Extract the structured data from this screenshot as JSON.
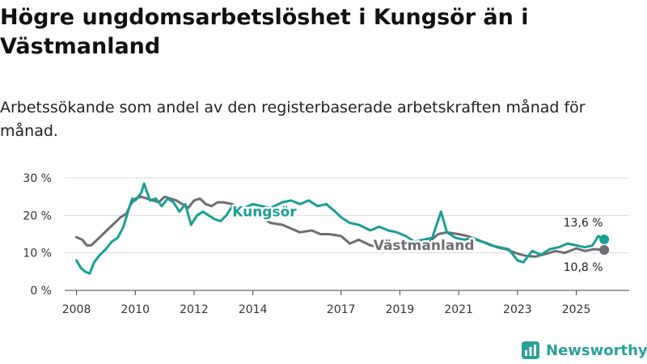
{
  "title": "Högre ungdomsarbetslöshet i Kungsör än i Västmanland",
  "subtitle": "Arbetssökande som andel av den registerbaserade arbetskraften månad för månad.",
  "brand": "Newsworthy",
  "colors": {
    "kungsor": "#1a9f94",
    "vastmanland": "#6e6e72",
    "grid": "#dcdcdc",
    "brand": "#2aa19b"
  },
  "chart_data": {
    "type": "line",
    "xlim": [
      2007.6,
      2026.8
    ],
    "ylim": [
      0,
      30
    ],
    "x_ticks": [
      2008,
      2010,
      2012,
      2014,
      2017,
      2019,
      2021,
      2023,
      2025
    ],
    "x_tick_labels": [
      "2008",
      "2010",
      "2012",
      "2014",
      "2017",
      "2019",
      "2021",
      "2023",
      "2025"
    ],
    "y_ticks": [
      0,
      10,
      20,
      30
    ],
    "y_tick_labels": [
      "0 %",
      "10 %",
      "20 %",
      "30 %"
    ],
    "series": [
      {
        "name": "Västmanland",
        "label": "Västmanland",
        "end_label": "10,8 %",
        "points": [
          [
            2008.0,
            14.2
          ],
          [
            2008.2,
            13.5
          ],
          [
            2008.35,
            12.0
          ],
          [
            2008.5,
            12.0
          ],
          [
            2008.7,
            13.5
          ],
          [
            2008.9,
            15.0
          ],
          [
            2009.1,
            16.5
          ],
          [
            2009.3,
            18.0
          ],
          [
            2009.5,
            19.5
          ],
          [
            2009.7,
            20.5
          ],
          [
            2009.85,
            23.0
          ],
          [
            2010.0,
            24.5
          ],
          [
            2010.2,
            25.0
          ],
          [
            2010.4,
            24.5
          ],
          [
            2010.6,
            24.0
          ],
          [
            2010.8,
            23.5
          ],
          [
            2011.0,
            25.0
          ],
          [
            2011.2,
            24.5
          ],
          [
            2011.4,
            24.0
          ],
          [
            2011.6,
            23.0
          ],
          [
            2011.8,
            22.0
          ],
          [
            2012.0,
            24.0
          ],
          [
            2012.2,
            24.5
          ],
          [
            2012.4,
            23.0
          ],
          [
            2012.6,
            22.5
          ],
          [
            2012.8,
            23.5
          ],
          [
            2013.0,
            23.5
          ],
          [
            2013.3,
            23.0
          ],
          [
            2013.6,
            22.0
          ],
          [
            2014.0,
            21.0
          ],
          [
            2014.3,
            19.5
          ],
          [
            2014.6,
            18.0
          ],
          [
            2015.0,
            17.5
          ],
          [
            2015.3,
            16.5
          ],
          [
            2015.6,
            15.5
          ],
          [
            2016.0,
            16.0
          ],
          [
            2016.3,
            15.0
          ],
          [
            2016.6,
            15.0
          ],
          [
            2017.0,
            14.5
          ],
          [
            2017.3,
            12.5
          ],
          [
            2017.6,
            13.5
          ],
          [
            2018.0,
            12.0
          ],
          [
            2018.3,
            11.5
          ],
          [
            2018.6,
            11.0
          ],
          [
            2019.0,
            11.0
          ],
          [
            2019.3,
            11.5
          ],
          [
            2019.6,
            12.0
          ],
          [
            2020.0,
            13.0
          ],
          [
            2020.3,
            15.0
          ],
          [
            2020.6,
            15.5
          ],
          [
            2021.0,
            15.0
          ],
          [
            2021.3,
            14.5
          ],
          [
            2021.6,
            13.5
          ],
          [
            2022.0,
            12.5
          ],
          [
            2022.3,
            11.5
          ],
          [
            2022.6,
            11.0
          ],
          [
            2023.0,
            9.8
          ],
          [
            2023.3,
            9.2
          ],
          [
            2023.6,
            9.0
          ],
          [
            2024.0,
            9.8
          ],
          [
            2024.3,
            10.5
          ],
          [
            2024.6,
            10.0
          ],
          [
            2025.0,
            11.2
          ],
          [
            2025.3,
            10.5
          ],
          [
            2025.6,
            11.0
          ],
          [
            2025.95,
            10.8
          ]
        ]
      },
      {
        "name": "Kungsör",
        "label": "Kungsör",
        "end_label": "13,6 %",
        "points": [
          [
            2008.0,
            8.0
          ],
          [
            2008.15,
            6.0
          ],
          [
            2008.3,
            5.0
          ],
          [
            2008.45,
            4.5
          ],
          [
            2008.6,
            7.5
          ],
          [
            2008.8,
            9.5
          ],
          [
            2009.0,
            11.0
          ],
          [
            2009.2,
            13.0
          ],
          [
            2009.4,
            14.0
          ],
          [
            2009.6,
            17.0
          ],
          [
            2009.75,
            21.0
          ],
          [
            2009.9,
            24.5
          ],
          [
            2010.0,
            24.0
          ],
          [
            2010.2,
            26.0
          ],
          [
            2010.3,
            28.5
          ],
          [
            2010.5,
            24.0
          ],
          [
            2010.7,
            24.5
          ],
          [
            2010.9,
            22.5
          ],
          [
            2011.1,
            24.5
          ],
          [
            2011.3,
            23.5
          ],
          [
            2011.5,
            21.0
          ],
          [
            2011.7,
            23.0
          ],
          [
            2011.9,
            17.5
          ],
          [
            2012.1,
            20.0
          ],
          [
            2012.3,
            21.0
          ],
          [
            2012.5,
            20.0
          ],
          [
            2012.7,
            19.0
          ],
          [
            2012.9,
            18.5
          ],
          [
            2013.1,
            20.0
          ],
          [
            2013.3,
            22.5
          ],
          [
            2013.5,
            21.0
          ],
          [
            2013.7,
            22.0
          ],
          [
            2014.0,
            23.0
          ],
          [
            2014.3,
            22.5
          ],
          [
            2014.6,
            22.0
          ],
          [
            2015.0,
            23.5
          ],
          [
            2015.3,
            24.0
          ],
          [
            2015.6,
            23.0
          ],
          [
            2015.9,
            24.0
          ],
          [
            2016.2,
            22.5
          ],
          [
            2016.5,
            23.0
          ],
          [
            2016.8,
            21.0
          ],
          [
            2017.0,
            19.5
          ],
          [
            2017.3,
            18.0
          ],
          [
            2017.6,
            17.5
          ],
          [
            2018.0,
            16.0
          ],
          [
            2018.3,
            17.0
          ],
          [
            2018.6,
            16.0
          ],
          [
            2018.9,
            15.5
          ],
          [
            2019.2,
            14.5
          ],
          [
            2019.5,
            13.0
          ],
          [
            2019.8,
            13.5
          ],
          [
            2020.1,
            14.0
          ],
          [
            2020.4,
            21.0
          ],
          [
            2020.6,
            15.5
          ],
          [
            2020.9,
            14.0
          ],
          [
            2021.2,
            13.5
          ],
          [
            2021.5,
            14.0
          ],
          [
            2021.8,
            13.0
          ],
          [
            2022.1,
            12.0
          ],
          [
            2022.4,
            11.5
          ],
          [
            2022.7,
            11.0
          ],
          [
            2023.0,
            8.0
          ],
          [
            2023.2,
            7.5
          ],
          [
            2023.5,
            10.5
          ],
          [
            2023.8,
            9.5
          ],
          [
            2024.1,
            11.0
          ],
          [
            2024.4,
            11.5
          ],
          [
            2024.7,
            12.5
          ],
          [
            2025.0,
            12.0
          ],
          [
            2025.3,
            11.5
          ],
          [
            2025.55,
            12.0
          ],
          [
            2025.75,
            14.5
          ],
          [
            2025.95,
            13.6
          ]
        ]
      }
    ]
  }
}
